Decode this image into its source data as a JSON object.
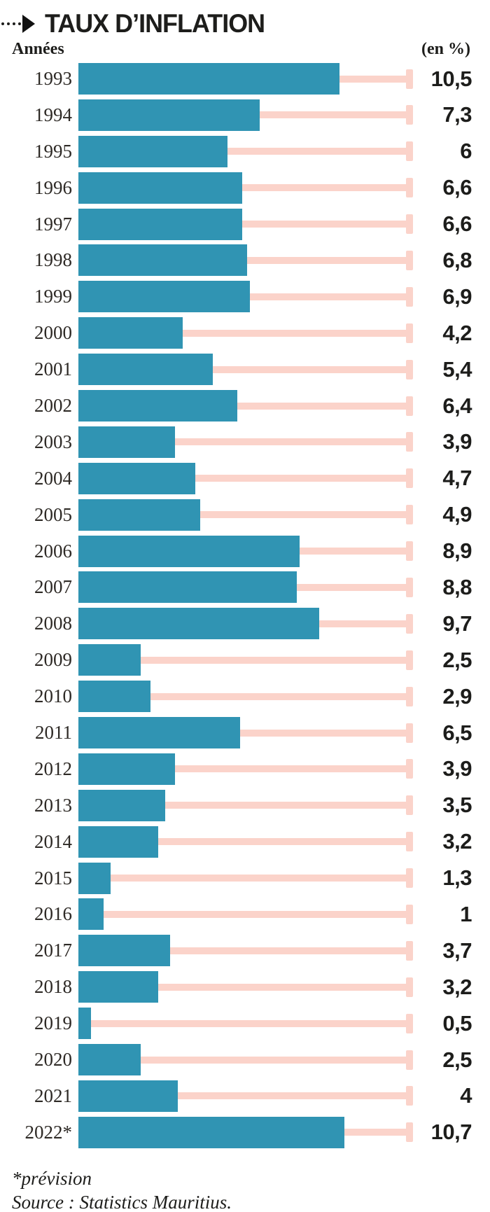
{
  "header": {
    "title": "TAUX D’INFLATION",
    "arrow_icon": "dotted-arrow-right"
  },
  "axis": {
    "left_label": "Années",
    "right_label": "(en %)"
  },
  "chart_data": {
    "type": "bar",
    "orientation": "horizontal",
    "title": "TAUX D’INFLATION",
    "xlabel": "Années",
    "unit_label": "(en %)",
    "xlim": [
      0,
      13.3
    ],
    "grid": false,
    "legend": "none",
    "categories": [
      "1993",
      "1994",
      "1995",
      "1996",
      "1997",
      "1998",
      "1999",
      "2000",
      "2001",
      "2002",
      "2003",
      "2004",
      "2005",
      "2006",
      "2007",
      "2008",
      "2009",
      "2010",
      "2011",
      "2012",
      "2013",
      "2014",
      "2015",
      "2016",
      "2017",
      "2018",
      "2019",
      "2020",
      "2021",
      "2022*"
    ],
    "values": [
      10.5,
      7.3,
      6,
      6.6,
      6.6,
      6.8,
      6.9,
      4.2,
      5.4,
      6.4,
      3.9,
      4.7,
      4.9,
      8.9,
      8.8,
      9.7,
      2.5,
      2.9,
      6.5,
      3.9,
      3.5,
      3.2,
      1.3,
      1,
      3.7,
      3.2,
      0.5,
      2.5,
      4,
      10.7
    ],
    "display_values": [
      "10,5",
      "7,3",
      "6",
      "6,6",
      "6,6",
      "6,8",
      "6,9",
      "4,2",
      "5,4",
      "6,4",
      "3,9",
      "4,7",
      "4,9",
      "8,9",
      "8,8",
      "9,7",
      "2,5",
      "2,9",
      "6,5",
      "3,9",
      "3,5",
      "3,2",
      "1,3",
      "1",
      "3,7",
      "3,2",
      "0,5",
      "2,5",
      "4",
      "10,7"
    ]
  },
  "footer": {
    "note": "*prévision",
    "source": "Source : Statistics Mauritius."
  },
  "colors": {
    "bar": "#3094b3",
    "connector": "#fbd3ca",
    "title_text": "#1d1d1b",
    "value_text": "#1d1d1b",
    "year_text": "#2e2a26"
  }
}
